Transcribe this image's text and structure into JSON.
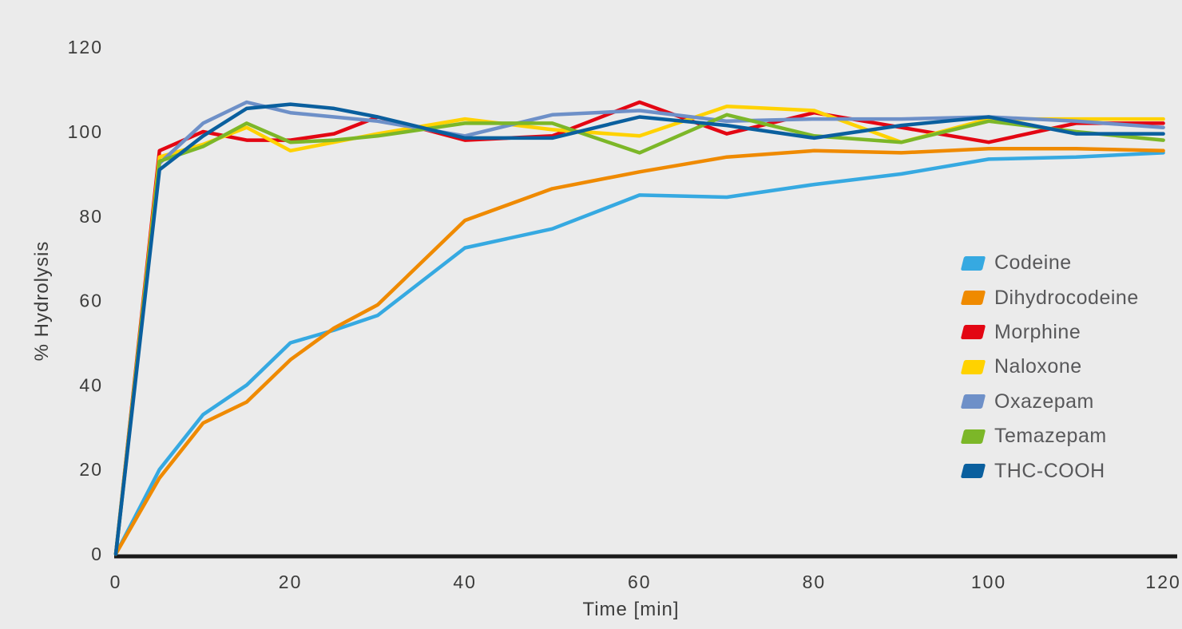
{
  "colors": {
    "background": "#EBEBEB",
    "axis_line": "#1A1A1A",
    "tick_text": "#3C3C3B",
    "legend_text": "#58585A"
  },
  "chart_data": {
    "type": "line",
    "title": "",
    "xlabel": "Time [min]",
    "ylabel": "% Hydrolysis",
    "xlim": [
      0,
      120
    ],
    "ylim": [
      0,
      120
    ],
    "x_ticks": [
      0,
      20,
      40,
      60,
      80,
      100,
      120
    ],
    "y_ticks": [
      0,
      20,
      40,
      60,
      80,
      100,
      120
    ],
    "grid": false,
    "legend_position": "right",
    "x": [
      0,
      5,
      10,
      15,
      20,
      25,
      30,
      40,
      50,
      60,
      70,
      80,
      90,
      100,
      110,
      120
    ],
    "series": [
      {
        "name": "Codeine",
        "color": "#36A9E1",
        "values": [
          0,
          20,
          33,
          40,
          50,
          53,
          56.5,
          72.5,
          77,
          85,
          84.5,
          87.5,
          90,
          93.5,
          94,
          95
        ]
      },
      {
        "name": "Dihydrocodeine",
        "color": "#EF8A00",
        "values": [
          0,
          18,
          31,
          36,
          46,
          53.5,
          59,
          79,
          86.5,
          90.5,
          94,
          95.5,
          95,
          96,
          96,
          95.5
        ]
      },
      {
        "name": "Morphine",
        "color": "#E30613",
        "values": [
          0,
          95.5,
          100,
          98,
          98,
          99.5,
          103.5,
          98,
          99,
          107,
          99.5,
          104.5,
          101,
          97.5,
          102,
          102
        ]
      },
      {
        "name": "Naloxone",
        "color": "#FFD200",
        "values": [
          0,
          94,
          97,
          101,
          95.5,
          97.5,
          99.5,
          103,
          100.5,
          99,
          106,
          105,
          97.5,
          103,
          103,
          103
        ]
      },
      {
        "name": "Oxazepam",
        "color": "#6E90C8",
        "values": [
          0,
          92.5,
          102,
          107,
          104.5,
          103.5,
          102.5,
          99,
          104,
          105,
          102.5,
          103,
          103,
          103.5,
          102.5,
          101
        ]
      },
      {
        "name": "Temazepam",
        "color": "#7CB728",
        "values": [
          0,
          93,
          96.5,
          102,
          97.5,
          98,
          99,
          102,
          102,
          95,
          104,
          99,
          97.5,
          102.5,
          100,
          98
        ]
      },
      {
        "name": "THC-COOH",
        "color": "#0A5F9E",
        "values": [
          0,
          91,
          99,
          105.5,
          106.5,
          105.5,
          103.5,
          98.5,
          98.5,
          103.5,
          101.5,
          98.5,
          101.5,
          103.5,
          99.5,
          99.5
        ]
      }
    ]
  }
}
